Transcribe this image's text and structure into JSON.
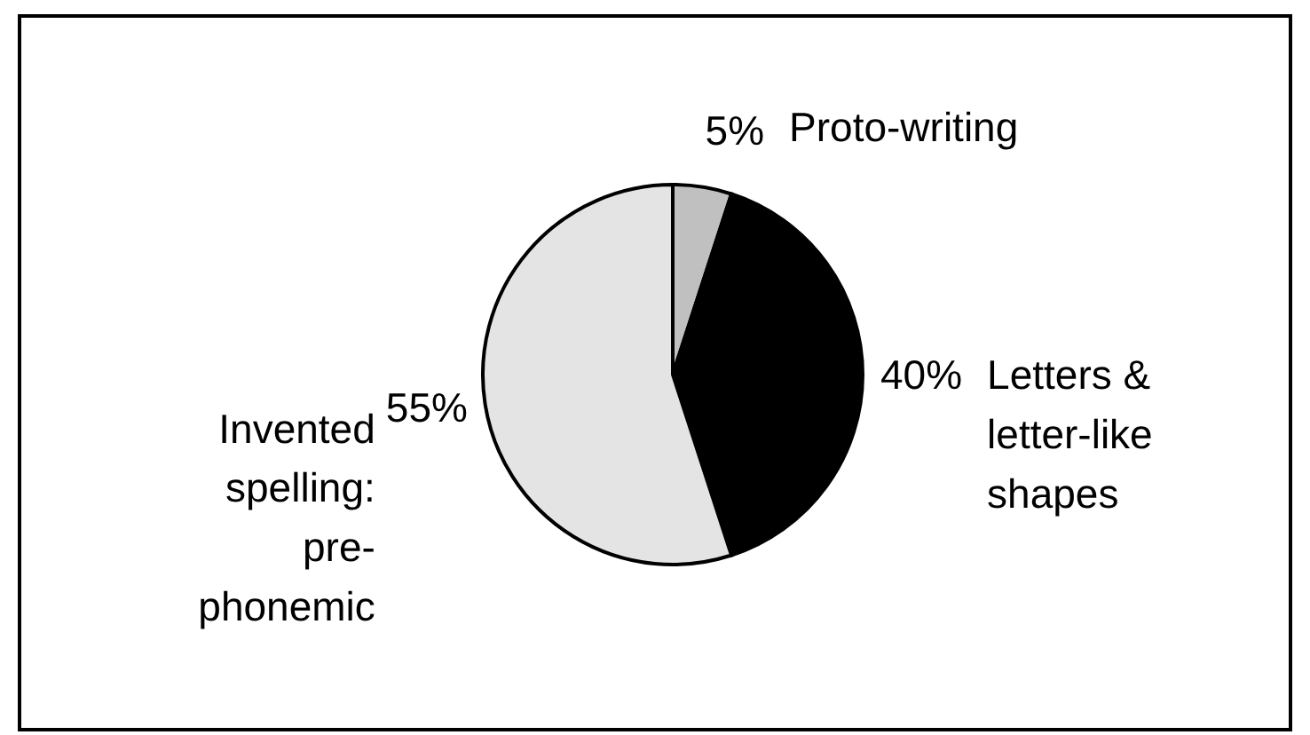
{
  "chart_data": {
    "type": "pie",
    "categories": [
      "Proto-writing",
      "Letters & letter-like shapes",
      "Invented spelling: pre-phonemic"
    ],
    "values": [
      5,
      40,
      55
    ],
    "colors": [
      "#c0c0c0",
      "#000000",
      "#e4e4e4"
    ],
    "value_labels": [
      "5%",
      "40%",
      "55%"
    ]
  }
}
